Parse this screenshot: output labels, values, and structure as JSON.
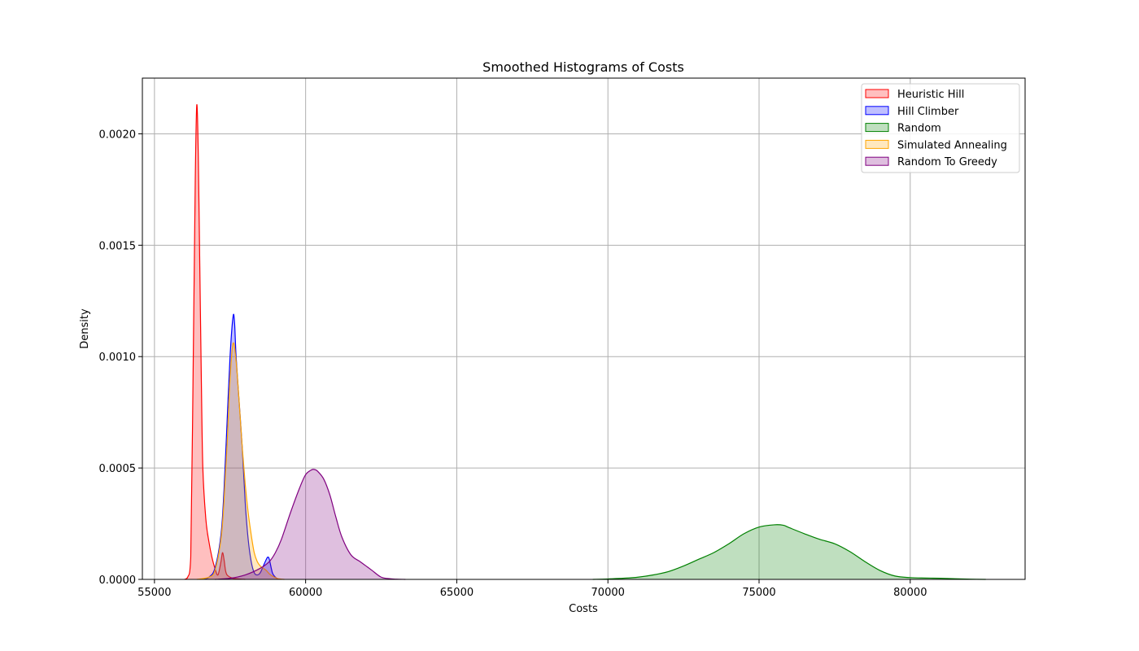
{
  "chart_data": {
    "type": "area",
    "title": "Smoothed Histograms of Costs",
    "xlabel": "Costs",
    "ylabel": "Density",
    "xlim": [
      54600,
      83800
    ],
    "ylim": [
      0,
      0.00225
    ],
    "grid": true,
    "legend_position": "top-right",
    "x_ticks": [
      55000,
      60000,
      65000,
      70000,
      75000,
      80000
    ],
    "x_tick_labels": [
      "55000",
      "60000",
      "65000",
      "70000",
      "75000",
      "80000"
    ],
    "y_ticks": [
      0,
      0.0005,
      0.001,
      0.0015,
      0.002
    ],
    "y_tick_labels": [
      "0.0000",
      "0.0005",
      "0.0010",
      "0.0015",
      "0.0020"
    ],
    "series": [
      {
        "name": "Heuristic Hill",
        "color": "#ff0000",
        "x": [
          56000,
          56100,
          56200,
          56300,
          56350,
          56400,
          56450,
          56500,
          56550,
          56600,
          56700,
          56800,
          56900,
          57000,
          57100,
          57200,
          57250,
          57300,
          57350,
          57400,
          57500,
          57600,
          57800,
          58000
        ],
        "y": [
          0,
          1e-05,
          0.0001,
          0.0012,
          0.0018,
          0.00213,
          0.0019,
          0.0014,
          0.0009,
          0.0005,
          0.00027,
          0.00017,
          0.0001,
          5e-05,
          2e-05,
          8e-05,
          0.00012,
          9e-05,
          4e-05,
          2e-05,
          1e-05,
          5e-06,
          2e-06,
          0
        ]
      },
      {
        "name": "Hill Climber",
        "color": "#0000ff",
        "x": [
          56600,
          56800,
          57000,
          57200,
          57300,
          57400,
          57500,
          57600,
          57650,
          57700,
          57800,
          57900,
          58000,
          58100,
          58200,
          58300,
          58400,
          58500,
          58600,
          58700,
          58750,
          58800,
          58900,
          59000,
          59100
        ],
        "y": [
          0,
          1e-05,
          5e-05,
          0.0002,
          0.0004,
          0.0007,
          0.001,
          0.00118,
          0.00115,
          0.001,
          0.0008,
          0.0006,
          0.00035,
          0.00018,
          8e-05,
          3e-05,
          2e-05,
          3e-05,
          6e-05,
          9e-05,
          0.0001,
          9e-05,
          3e-05,
          1e-05,
          0
        ]
      },
      {
        "name": "Random",
        "color": "#008000",
        "x": [
          69500,
          70000,
          70500,
          71000,
          71500,
          72000,
          72500,
          73000,
          73500,
          74000,
          74500,
          75000,
          75500,
          75800,
          76000,
          76500,
          77000,
          77500,
          78000,
          78500,
          79000,
          79500,
          80000,
          80500,
          81000,
          81500,
          82000,
          82500
        ],
        "y": [
          0,
          2e-06,
          5e-06,
          1e-05,
          2e-05,
          3.5e-05,
          6e-05,
          9e-05,
          0.00012,
          0.00016,
          0.000205,
          0.000235,
          0.000245,
          0.000243,
          0.000232,
          0.000205,
          0.00018,
          0.00016,
          0.000125,
          8e-05,
          4e-05,
          1.5e-05,
          8e-06,
          6e-06,
          5e-06,
          3e-06,
          1e-06,
          0
        ]
      },
      {
        "name": "Simulated Annealing",
        "color": "#ffa500",
        "x": [
          56400,
          56800,
          57000,
          57200,
          57300,
          57400,
          57500,
          57600,
          57700,
          57800,
          57900,
          58000,
          58100,
          58200,
          58300,
          58400,
          58500,
          58600,
          58700,
          58800,
          58900,
          59000,
          59100,
          59300
        ],
        "y": [
          0,
          1e-05,
          4e-05,
          0.00018,
          0.00035,
          0.0006,
          0.0009,
          0.00106,
          0.00098,
          0.0008,
          0.0006,
          0.00043,
          0.0003,
          0.0002,
          0.00012,
          8e-05,
          6e-05,
          5e-05,
          4e-05,
          2.5e-05,
          1.5e-05,
          8e-06,
          3e-06,
          0
        ]
      },
      {
        "name": "Random To Greedy",
        "color": "#800080",
        "x": [
          57000,
          57500,
          58000,
          58500,
          58800,
          59000,
          59200,
          59500,
          59800,
          60000,
          60200,
          60300,
          60400,
          60600,
          60800,
          61000,
          61200,
          61500,
          61800,
          62000,
          62200,
          62500,
          62800,
          63000,
          63300
        ],
        "y": [
          0,
          5e-06,
          2e-05,
          5e-05,
          8e-05,
          0.00012,
          0.00018,
          0.0003,
          0.00041,
          0.00047,
          0.000492,
          0.000493,
          0.000485,
          0.00045,
          0.00038,
          0.00028,
          0.00019,
          0.00011,
          8e-05,
          6e-05,
          4e-05,
          1e-05,
          3e-06,
          1e-06,
          0
        ]
      }
    ]
  }
}
